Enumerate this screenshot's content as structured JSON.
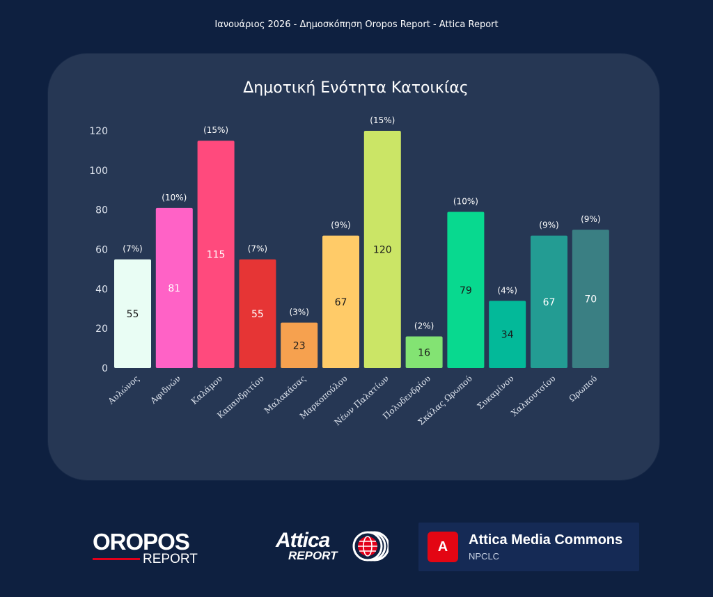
{
  "header": {
    "text": "Ιανουάριος 2026 - Δημοσκόπηση Oropos Report - Attica Report"
  },
  "chart_data": {
    "type": "bar",
    "title": "Δημοτική Ενότητα Κατοικίας",
    "xlabel": "",
    "ylabel": "",
    "ylim": [
      0,
      120
    ],
    "yticks": [
      "0",
      "20",
      "40",
      "60",
      "80",
      "100",
      "120"
    ],
    "grid": false,
    "legend": "none",
    "categories": [
      "Αυλώνος",
      "Αφιδνών",
      "Καλάμου",
      "Καπανδριτίου",
      "Μαλακάσας",
      "Μαρκοπούλου",
      "Νέων Παλατίων",
      "Πολυδενδρίου",
      "Σκάλας Ωρωπού",
      "Συκαμίνου",
      "Χαλκουτσίου",
      "Ωρωπού"
    ],
    "values": [
      55,
      81,
      115,
      55,
      23,
      67,
      120,
      16,
      79,
      34,
      67,
      70
    ],
    "value_labels": [
      "55",
      "81",
      "115",
      "55",
      "23",
      "67",
      "120",
      "16",
      "79",
      "34",
      "67",
      "70"
    ],
    "percent_labels": [
      "(7%)",
      "(10%)",
      "(15%)",
      "(7%)",
      "(3%)",
      "(9%)",
      "(15%)",
      "(2%)",
      "(10%)",
      "(4%)",
      "(9%)",
      "(9%)"
    ],
    "colors": [
      "#e9fdf4",
      "#ff62c6",
      "#ff4a7d",
      "#e63535",
      "#f6a14f",
      "#ffcb68",
      "#cbe566",
      "#83e373",
      "#08d98f",
      "#03b999",
      "#239c93",
      "#3a7f83"
    ],
    "value_label_colors": [
      "#1a1a1a",
      "#ffffff",
      "#ffffff",
      "#ffffff",
      "#1a1a1a",
      "#1a1a1a",
      "#1a1a1a",
      "#1a1a1a",
      "#1a1a1a",
      "#1a1a1a",
      "#ffffff",
      "#ffffff"
    ]
  },
  "logos": {
    "oropos_word": "OROPOS",
    "oropos_report": "REPORT",
    "attica_word": "Attica",
    "attica_report": "REPORT",
    "amc_badge": "A",
    "amc_title": "Attica Media Commons",
    "amc_sub": "NPCLC"
  }
}
